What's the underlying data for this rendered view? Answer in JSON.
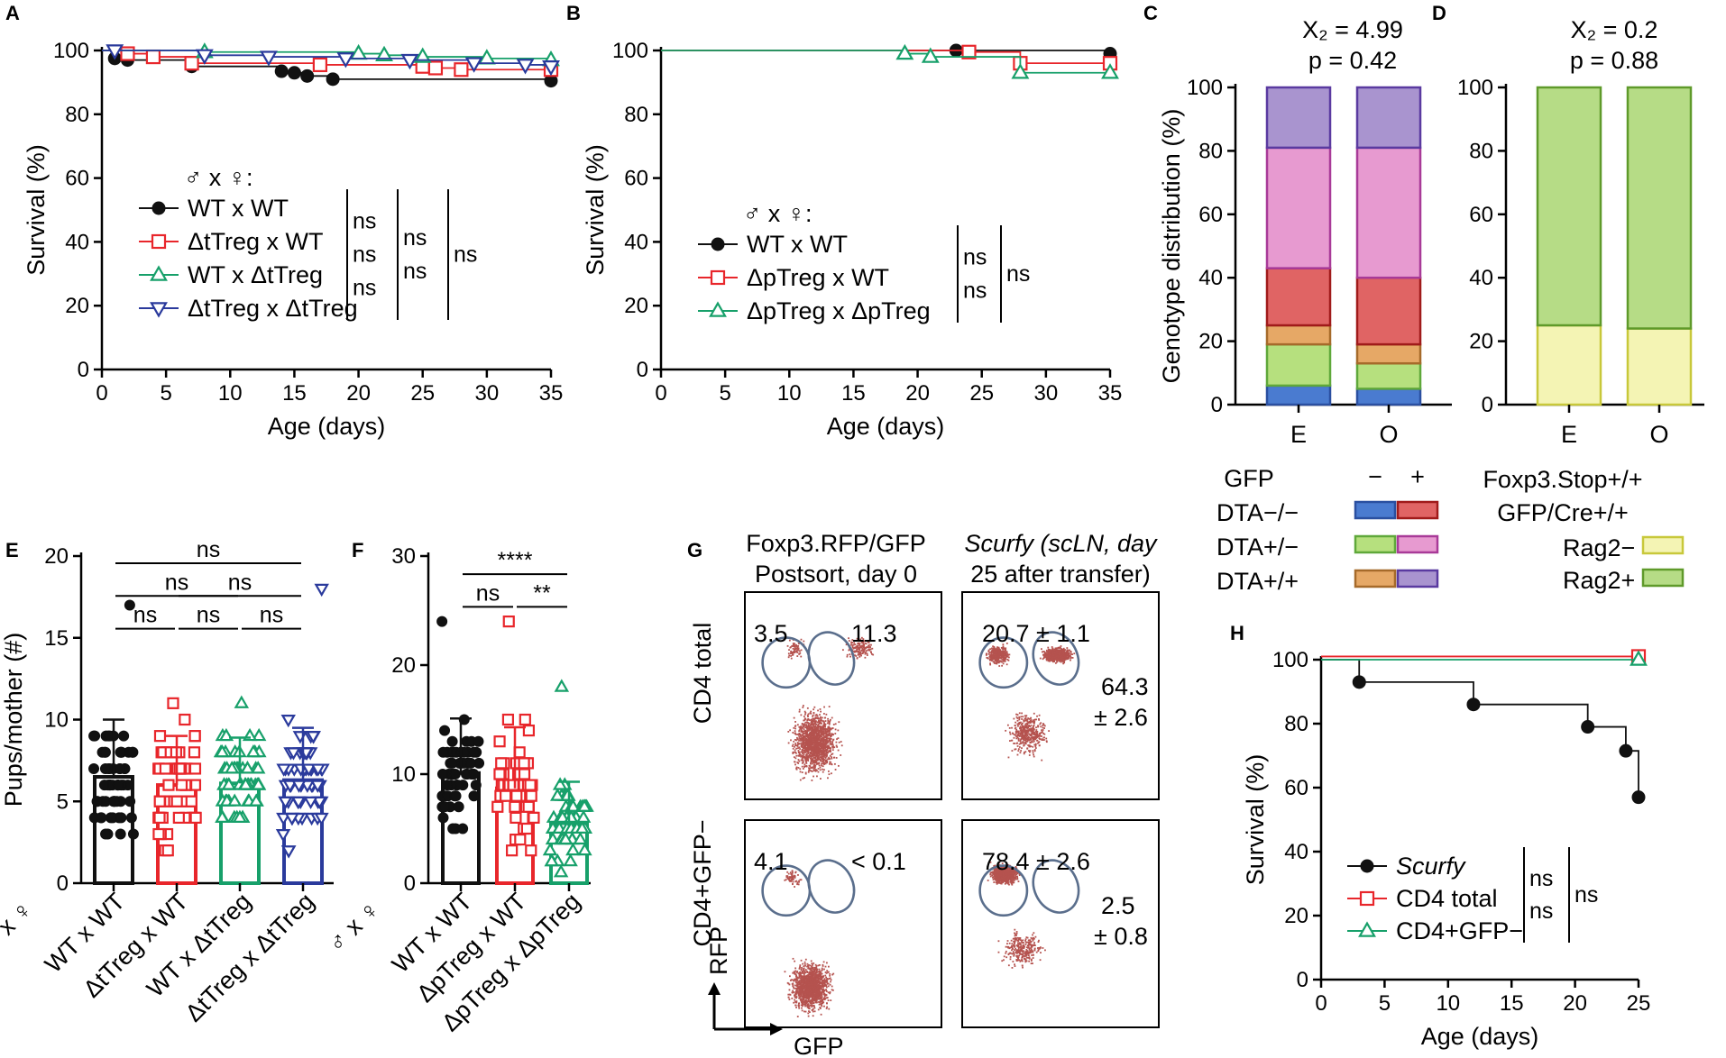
{
  "panel_letters": [
    "A",
    "B",
    "C",
    "D",
    "E",
    "F",
    "G",
    "H"
  ],
  "colors": {
    "black": "#111111",
    "red": "#e8262b",
    "green": "#17a06a",
    "blue": "#2a3a9c",
    "flowdot": "#b5534f",
    "gate": "#5a6e8c"
  },
  "chart_data": [
    {
      "id": "A",
      "type": "line",
      "subtype": "kaplan-meier",
      "xlabel": "Age (days)",
      "ylabel": "Survival (%)",
      "xlim": [
        0,
        35
      ],
      "ylim": [
        0,
        100
      ],
      "xticks": [
        0,
        5,
        10,
        15,
        20,
        25,
        30,
        35
      ],
      "yticks": [
        0,
        20,
        40,
        60,
        80,
        100
      ],
      "legend_title": "♂ x ♀:",
      "series": [
        {
          "name": "WT x WT",
          "color": "#111111",
          "marker": "circle",
          "x": [
            0,
            1,
            2,
            7,
            14,
            15,
            16,
            18,
            35
          ],
          "y": [
            100,
            97.5,
            97,
            95,
            93.5,
            93,
            92,
            91,
            90.5
          ],
          "marks": [
            [
              1,
              97.5
            ],
            [
              2,
              97
            ],
            [
              7,
              95
            ],
            [
              14,
              93.5
            ],
            [
              15,
              93
            ],
            [
              16,
              92
            ],
            [
              18,
              91
            ],
            [
              35,
              90.5
            ]
          ]
        },
        {
          "name": "ΔtTreg x WT",
          "color": "#e8262b",
          "marker": "square",
          "x": [
            0,
            2,
            4,
            7,
            17,
            25,
            26,
            28,
            35
          ],
          "y": [
            100,
            99,
            98,
            96,
            95.5,
            95,
            94.5,
            94,
            94
          ],
          "marks": [
            [
              2,
              99
            ],
            [
              4,
              98
            ],
            [
              7,
              96
            ],
            [
              17,
              95.5
            ],
            [
              25,
              95
            ],
            [
              26,
              94.5
            ],
            [
              28,
              94
            ],
            [
              35,
              94
            ]
          ]
        },
        {
          "name": "WT x ΔtTreg",
          "color": "#17a06a",
          "marker": "triangle-up",
          "x": [
            0,
            8,
            20,
            22,
            25,
            30,
            35
          ],
          "y": [
            100,
            99.5,
            99,
            98.5,
            98,
            97.5,
            97
          ],
          "marks": [
            [
              8,
              99.5
            ],
            [
              20,
              99
            ],
            [
              22,
              98.5
            ],
            [
              25,
              98
            ],
            [
              30,
              97.5
            ],
            [
              35,
              97
            ]
          ]
        },
        {
          "name": "ΔtTreg x ΔtTreg",
          "color": "#2a3a9c",
          "marker": "triangle-down",
          "x": [
            0,
            1,
            8,
            13,
            19,
            24,
            29,
            33,
            35
          ],
          "y": [
            100,
            100,
            98.5,
            98,
            97.5,
            97,
            96,
            95.5,
            95
          ],
          "marks": [
            [
              1,
              100
            ],
            [
              8,
              98.5
            ],
            [
              13,
              98
            ],
            [
              19,
              97.5
            ],
            [
              24,
              97
            ],
            [
              29,
              96
            ],
            [
              33,
              95.5
            ],
            [
              35,
              95
            ]
          ]
        }
      ],
      "stats": [
        {
          "pair": [
            1,
            2
          ],
          "level": 0,
          "text": "ns"
        },
        {
          "pair": [
            2,
            3
          ],
          "level": 0,
          "text": "ns"
        },
        {
          "pair": [
            3,
            4
          ],
          "level": 0,
          "text": "ns"
        },
        {
          "pair": [
            1,
            3
          ],
          "level": 1,
          "text": "ns"
        },
        {
          "pair": [
            2,
            4
          ],
          "level": 1,
          "text": "ns"
        },
        {
          "pair": [
            1,
            4
          ],
          "level": 2,
          "text": "ns"
        }
      ]
    },
    {
      "id": "B",
      "type": "line",
      "subtype": "kaplan-meier",
      "xlabel": "Age (days)",
      "ylabel": "Survival (%)",
      "xlim": [
        0,
        35
      ],
      "ylim": [
        0,
        100
      ],
      "xticks": [
        0,
        5,
        10,
        15,
        20,
        25,
        30,
        35
      ],
      "yticks": [
        0,
        20,
        40,
        60,
        80,
        100
      ],
      "legend_title": "♂ x ♀:",
      "series": [
        {
          "name": "WT x WT",
          "color": "#111111",
          "marker": "circle",
          "x": [
            0,
            23,
            35
          ],
          "y": [
            100,
            100,
            99
          ],
          "marks": [
            [
              23,
              100
            ],
            [
              35,
              99
            ]
          ]
        },
        {
          "name": "ΔpTreg x WT",
          "color": "#e8262b",
          "marker": "square",
          "x": [
            0,
            24,
            28,
            35
          ],
          "y": [
            100,
            99.5,
            96,
            96
          ],
          "marks": [
            [
              24,
              99.5
            ],
            [
              28,
              96
            ],
            [
              35,
              96
            ]
          ]
        },
        {
          "name": "ΔpTreg x ΔpTreg",
          "color": "#17a06a",
          "marker": "triangle-up",
          "x": [
            0,
            19,
            21,
            28,
            35
          ],
          "y": [
            100,
            99,
            98,
            93,
            93
          ],
          "marks": [
            [
              19,
              99
            ],
            [
              21,
              98
            ],
            [
              28,
              93
            ],
            [
              35,
              93
            ]
          ]
        }
      ],
      "stats": [
        {
          "pair": [
            1,
            2
          ],
          "level": 0,
          "text": "ns"
        },
        {
          "pair": [
            2,
            3
          ],
          "level": 0,
          "text": "ns"
        },
        {
          "pair": [
            1,
            3
          ],
          "level": 1,
          "text": "ns"
        }
      ]
    },
    {
      "id": "C",
      "type": "bar",
      "subtype": "stacked-percent",
      "title_line1": "X₂ = 4.99",
      "title_line2": "p = 0.42",
      "ylabel": "Genotype distribution (%)",
      "ylim": [
        0,
        100
      ],
      "yticks": [
        0,
        20,
        40,
        60,
        80,
        100
      ],
      "categories": [
        "E",
        "O"
      ],
      "series": [
        {
          "name": "DTA−/− GFP−",
          "fill": "#4a7bd0",
          "stroke": "#2a4fa0",
          "values": [
            6,
            5
          ]
        },
        {
          "name": "DTA+/− GFP−",
          "fill": "#b6e07e",
          "stroke": "#5fa83a",
          "values": [
            13,
            8
          ]
        },
        {
          "name": "DTA+/+ GFP−",
          "fill": "#e6a866",
          "stroke": "#a66a2a",
          "values": [
            6,
            6
          ]
        },
        {
          "name": "DTA−/− GFP+",
          "fill": "#e06464",
          "stroke": "#a01a1a",
          "values": [
            18,
            21
          ]
        },
        {
          "name": "DTA+/− GFP+",
          "fill": "#e79ad0",
          "stroke": "#a83a98",
          "values": [
            38,
            41
          ]
        },
        {
          "name": "DTA+/+ GFP+",
          "fill": "#a994cf",
          "stroke": "#5a3aa0",
          "values": [
            19,
            19
          ]
        }
      ],
      "legend": {
        "header": "GFP",
        "col_minus": "−",
        "col_plus": "+",
        "rows": [
          {
            "label": "DTA−/−",
            "minus_fill": "#4a7bd0",
            "minus_stroke": "#2a4fa0",
            "plus_fill": "#e06464",
            "plus_stroke": "#a01a1a"
          },
          {
            "label": "DTA+/−",
            "minus_fill": "#b6e07e",
            "minus_stroke": "#5fa83a",
            "plus_fill": "#e79ad0",
            "plus_stroke": "#a83a98"
          },
          {
            "label": "DTA+/+",
            "minus_fill": "#e6a866",
            "minus_stroke": "#a66a2a",
            "plus_fill": "#a994cf",
            "plus_stroke": "#5a3aa0"
          }
        ]
      }
    },
    {
      "id": "D",
      "type": "bar",
      "subtype": "stacked-percent",
      "title_line1": "X₂ = 0.2",
      "title_line2": "p = 0.88",
      "ylim": [
        0,
        100
      ],
      "yticks": [
        0,
        20,
        40,
        60,
        80,
        100
      ],
      "categories": [
        "E",
        "O"
      ],
      "series": [
        {
          "name": "Rag2−",
          "fill": "#f4f4b4",
          "stroke": "#c8c83a",
          "values": [
            25,
            24
          ]
        },
        {
          "name": "Rag2+",
          "fill": "#b6dc86",
          "stroke": "#5f9a2a",
          "values": [
            75,
            76
          ]
        }
      ],
      "legend": {
        "header1": "Foxp3.Stop+/+",
        "header2": "GFP/Cre+/+",
        "rows": [
          {
            "label": "Rag2−",
            "fill": "#f4f4b4",
            "stroke": "#c8c83a"
          },
          {
            "label": "Rag2+",
            "fill": "#b6dc86",
            "stroke": "#5f9a2a"
          }
        ]
      }
    },
    {
      "id": "E",
      "type": "bar",
      "subtype": "scatter-bar",
      "ylabel": "Pups/mother (#)",
      "ylim": [
        0,
        20
      ],
      "yticks": [
        0,
        5,
        10,
        15,
        20
      ],
      "cross_label": "♂ x ♀",
      "categories": [
        "WT x WT",
        "ΔtTreg x WT",
        "WT x ΔtTreg",
        "ΔtTreg x ΔtTreg"
      ],
      "colors": [
        "#111111",
        "#e8262b",
        "#17a06a",
        "#2a3a9c"
      ],
      "markers": [
        "circle",
        "square",
        "triangle-up",
        "triangle-down"
      ],
      "means": [
        6.5,
        6.0,
        6.1,
        6.3
      ],
      "sd": [
        3.5,
        3.0,
        2.8,
        3.2
      ],
      "max": [
        17,
        11,
        11,
        18
      ],
      "comparisons": [
        {
          "a": 0,
          "b": 1,
          "text": "ns",
          "y": 16
        },
        {
          "a": 1,
          "b": 2,
          "text": "ns",
          "y": 16
        },
        {
          "a": 2,
          "b": 3,
          "text": "ns",
          "y": 16
        },
        {
          "a": 0,
          "b": 2,
          "text": "ns",
          "y": 18
        },
        {
          "a": 1,
          "b": 3,
          "text": "ns",
          "y": 18
        },
        {
          "a": 0,
          "b": 3,
          "text": "ns",
          "y": 20
        }
      ]
    },
    {
      "id": "F",
      "type": "bar",
      "subtype": "scatter-bar",
      "ylim": [
        0,
        30
      ],
      "yticks": [
        0,
        10,
        20,
        30
      ],
      "cross_label": "♂ x ♀",
      "categories": [
        "WT x WT",
        "ΔpTreg x WT",
        "ΔpTreg x ΔpTreg"
      ],
      "colors": [
        "#111111",
        "#e8262b",
        "#17a06a"
      ],
      "markers": [
        "circle",
        "square",
        "triangle-up"
      ],
      "means": [
        10.1,
        8.7,
        5.5
      ],
      "sd": [
        5.0,
        5.6,
        3.8
      ],
      "max": [
        24,
        24,
        18
      ],
      "comparisons": [
        {
          "a": 0,
          "b": 1,
          "text": "ns",
          "y": 26
        },
        {
          "a": 1,
          "b": 2,
          "text": "**",
          "y": 26
        },
        {
          "a": 0,
          "b": 2,
          "text": "****",
          "y": 29
        }
      ]
    },
    {
      "id": "G",
      "type": "scatter",
      "subtype": "flow-cytometry",
      "col_titles": [
        [
          "Foxp3.RFP/GFP",
          "Postsort, day 0"
        ],
        [
          "Scurfy (scLN, day",
          "25 after transfer)"
        ]
      ],
      "row_labels": [
        "CD4 total",
        "CD4+GFP−"
      ],
      "x_axis": "GFP",
      "y_axis": "RFP",
      "plots": [
        {
          "left": "3.5",
          "right": "11.3"
        },
        {
          "left": "20.7 ± 1.1",
          "right1": "64.3",
          "right2": "± 2.6"
        },
        {
          "left": "4.1",
          "right": "< 0.1"
        },
        {
          "left": "78.4 ± 2.6",
          "right1": "2.5",
          "right2": "± 0.8"
        }
      ]
    },
    {
      "id": "H",
      "type": "line",
      "subtype": "kaplan-meier",
      "xlabel": "Age (days)",
      "ylabel": "Survival (%)",
      "xlim": [
        0,
        25
      ],
      "ylim": [
        0,
        100
      ],
      "xticks": [
        0,
        5,
        10,
        15,
        20,
        25
      ],
      "yticks": [
        0,
        20,
        40,
        60,
        80,
        100
      ],
      "series": [
        {
          "name": "Scurfy",
          "color": "#111111",
          "marker": "circle",
          "italic": true,
          "x": [
            0,
            3,
            3,
            12,
            12,
            21,
            21,
            24,
            24,
            25,
            25
          ],
          "y": [
            100,
            100,
            93,
            93,
            86,
            86,
            79,
            79,
            71.5,
            71.5,
            57
          ],
          "marks": [
            [
              3,
              93
            ],
            [
              12,
              86
            ],
            [
              21,
              79
            ],
            [
              24,
              71.5
            ],
            [
              25,
              57
            ]
          ]
        },
        {
          "name": "CD4 total",
          "color": "#e8262b",
          "marker": "square",
          "x": [
            0,
            25
          ],
          "y": [
            101,
            101
          ],
          "marks": [
            [
              25,
              101
            ]
          ]
        },
        {
          "name": "CD4+GFP−",
          "color": "#17a06a",
          "marker": "triangle-up",
          "x": [
            0,
            25
          ],
          "y": [
            100,
            100
          ],
          "marks": [
            [
              25,
              100
            ]
          ]
        }
      ],
      "stats": [
        {
          "pair": [
            1,
            2
          ],
          "level": 0,
          "text": "ns"
        },
        {
          "pair": [
            2,
            3
          ],
          "level": 0,
          "text": "ns"
        },
        {
          "pair": [
            1,
            3
          ],
          "level": 1,
          "text": "ns"
        }
      ]
    }
  ]
}
